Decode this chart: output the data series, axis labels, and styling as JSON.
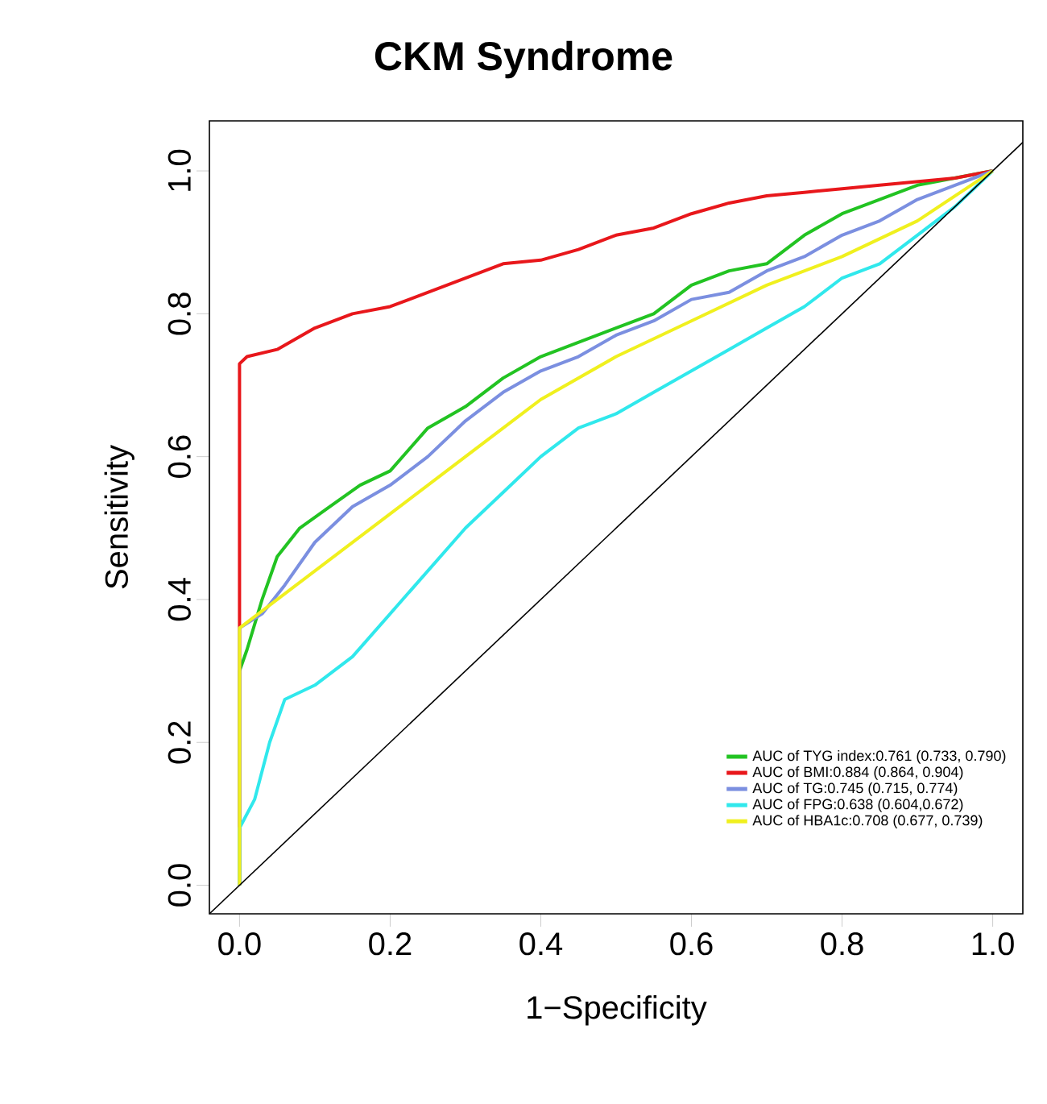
{
  "chart_data": {
    "type": "line",
    "title": "CKM Syndrome",
    "xlabel": "1−Specificity",
    "ylabel": "Sensitivity",
    "xlim": [
      -0.04,
      1.04
    ],
    "ylim": [
      -0.04,
      1.07
    ],
    "xticks": [
      {
        "value": 0,
        "label": "0.0"
      },
      {
        "value": 0.2,
        "label": "0.2"
      },
      {
        "value": 0.4,
        "label": "0.4"
      },
      {
        "value": 0.6,
        "label": "0.6"
      },
      {
        "value": 0.8,
        "label": "0.8"
      },
      {
        "value": 1,
        "label": "1.0"
      }
    ],
    "yticks": [
      {
        "value": 0,
        "label": "0.0"
      },
      {
        "value": 0.2,
        "label": "0.2"
      },
      {
        "value": 0.4,
        "label": "0.4"
      },
      {
        "value": 0.6,
        "label": "0.6"
      },
      {
        "value": 0.8,
        "label": "0.8"
      },
      {
        "value": 1,
        "label": "1.0"
      }
    ],
    "legend": "bottom right",
    "marker": "none",
    "line_style": "solid",
    "series": [
      {
        "name": "AUC of TYG index:0.761 (0.733, 0.790)",
        "color": "#22c322",
        "x": [
          0,
          0,
          0.01,
          0.03,
          0.05,
          0.08,
          0.12,
          0.16,
          0.2,
          0.25,
          0.3,
          0.35,
          0.4,
          0.45,
          0.5,
          0.55,
          0.6,
          0.65,
          0.7,
          0.75,
          0.8,
          0.85,
          0.9,
          0.95,
          1
        ],
        "values": [
          0,
          0.3,
          0.33,
          0.4,
          0.46,
          0.5,
          0.53,
          0.56,
          0.58,
          0.64,
          0.67,
          0.71,
          0.74,
          0.76,
          0.78,
          0.8,
          0.84,
          0.86,
          0.87,
          0.91,
          0.94,
          0.96,
          0.98,
          0.99,
          1
        ]
      },
      {
        "name": "AUC of BMI:0.884 (0.864, 0.904)",
        "color": "#e8171b",
        "x": [
          0,
          0,
          0.01,
          0.05,
          0.1,
          0.15,
          0.2,
          0.25,
          0.3,
          0.35,
          0.4,
          0.45,
          0.5,
          0.55,
          0.6,
          0.65,
          0.7,
          0.75,
          0.8,
          0.85,
          0.9,
          0.95,
          1
        ],
        "values": [
          0,
          0.73,
          0.74,
          0.75,
          0.78,
          0.8,
          0.81,
          0.83,
          0.85,
          0.87,
          0.875,
          0.89,
          0.91,
          0.92,
          0.94,
          0.955,
          0.965,
          0.97,
          0.975,
          0.98,
          0.985,
          0.99,
          1
        ]
      },
      {
        "name": "AUC of TG:0.745 (0.715, 0.774)",
        "color": "#7b8fe0",
        "x": [
          0,
          0,
          0.03,
          0.06,
          0.1,
          0.15,
          0.2,
          0.25,
          0.3,
          0.35,
          0.4,
          0.45,
          0.5,
          0.55,
          0.6,
          0.65,
          0.7,
          0.75,
          0.8,
          0.85,
          0.9,
          0.95,
          1
        ],
        "values": [
          0,
          0.36,
          0.38,
          0.42,
          0.48,
          0.53,
          0.56,
          0.6,
          0.65,
          0.69,
          0.72,
          0.74,
          0.77,
          0.79,
          0.82,
          0.83,
          0.86,
          0.88,
          0.91,
          0.93,
          0.96,
          0.98,
          1
        ]
      },
      {
        "name": "AUC of FPG:0.638 (0.604,0.672)",
        "color": "#30e8ec",
        "x": [
          0,
          0,
          0.02,
          0.04,
          0.06,
          0.1,
          0.15,
          0.2,
          0.25,
          0.3,
          0.35,
          0.4,
          0.45,
          0.5,
          0.55,
          0.6,
          0.65,
          0.7,
          0.75,
          0.8,
          0.85,
          0.9,
          0.95,
          1
        ],
        "values": [
          0,
          0.08,
          0.12,
          0.2,
          0.26,
          0.28,
          0.32,
          0.38,
          0.44,
          0.5,
          0.55,
          0.6,
          0.64,
          0.66,
          0.69,
          0.72,
          0.75,
          0.78,
          0.81,
          0.85,
          0.87,
          0.91,
          0.95,
          1
        ]
      },
      {
        "name": "AUC of HBA1c:0.708 (0.677, 0.739)",
        "color": "#f0f01e",
        "x": [
          0,
          0,
          0.05,
          0.1,
          0.15,
          0.2,
          0.3,
          0.4,
          0.5,
          0.6,
          0.7,
          0.8,
          0.9,
          1
        ],
        "values": [
          0,
          0.36,
          0.4,
          0.44,
          0.48,
          0.52,
          0.6,
          0.68,
          0.74,
          0.79,
          0.84,
          0.88,
          0.93,
          1
        ]
      },
      {
        "color": "#000000",
        "x": [
          -0.04,
          1.04
        ],
        "values": [
          -0.04,
          1.04
        ]
      }
    ]
  }
}
